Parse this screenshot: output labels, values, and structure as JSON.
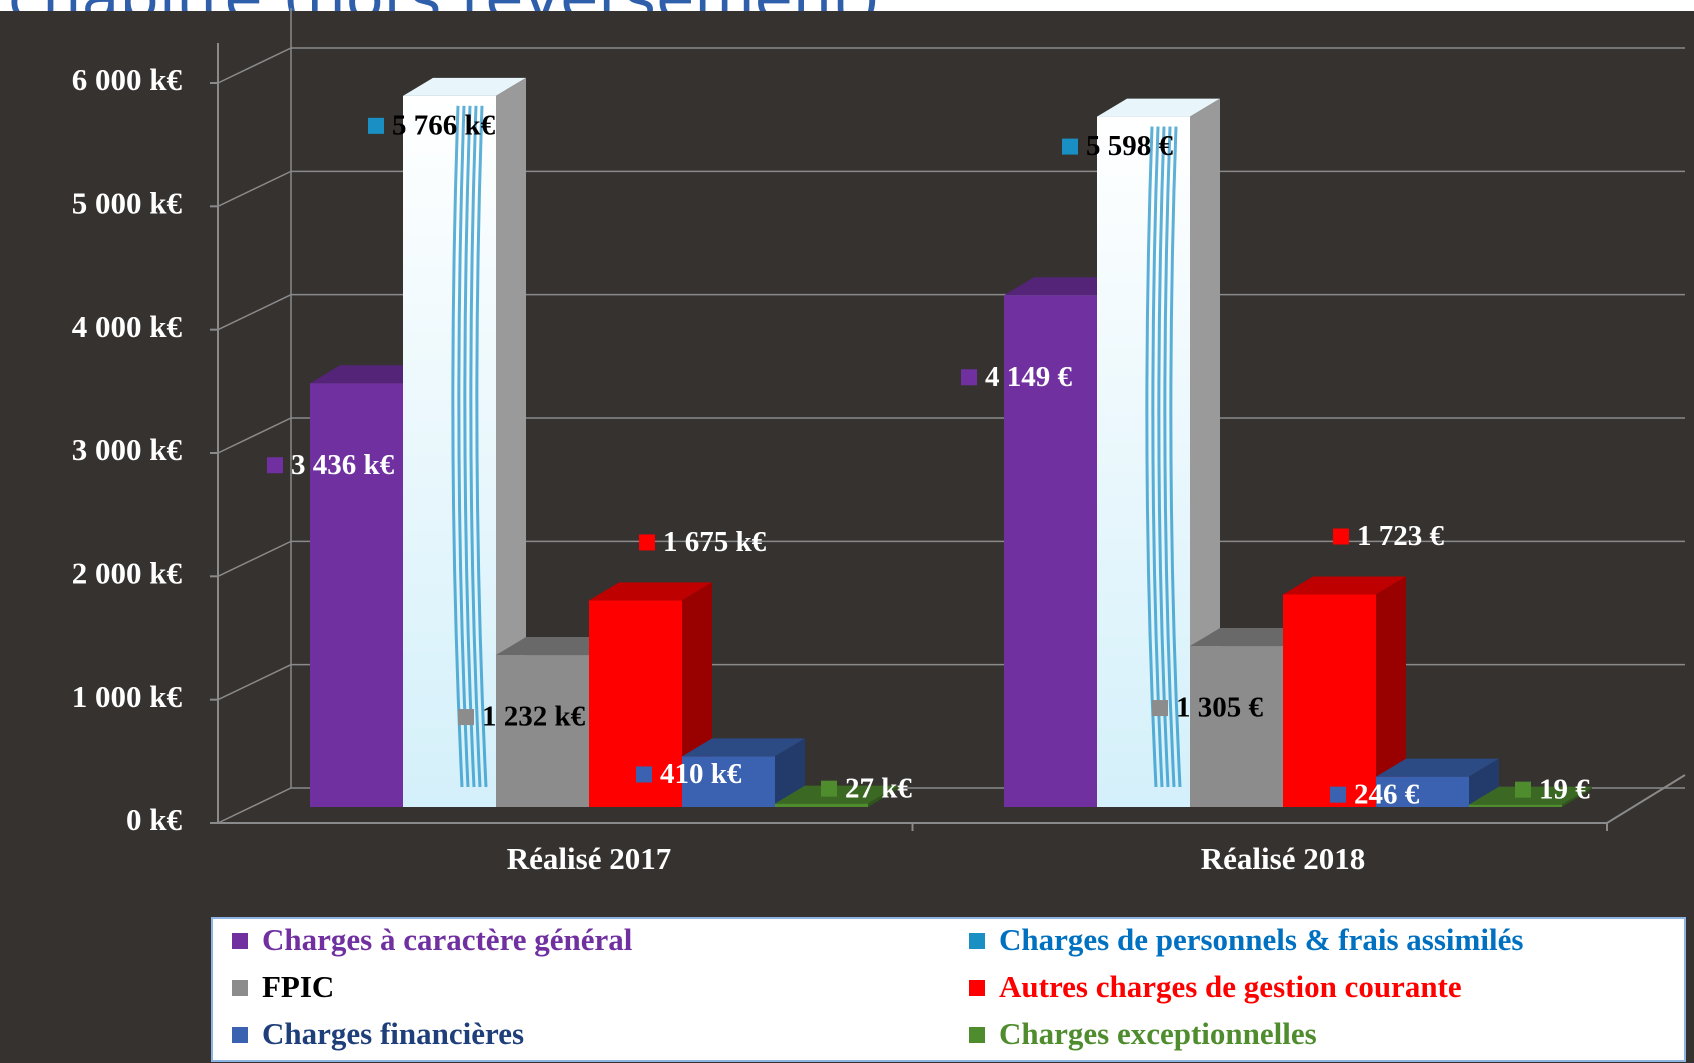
{
  "chart_data": {
    "type": "bar3d",
    "title": "chapitre (hors reversement)",
    "categories": [
      "Réalisé 2017",
      "Réalisé 2018"
    ],
    "series": [
      {
        "name": "Charges à caractère général",
        "color": "#7030a0",
        "text_color": "#7030a0",
        "values": [
          3436,
          4149
        ],
        "value_labels": [
          "3 436  k€",
          "4 149 €"
        ],
        "label_color": "#ffffff"
      },
      {
        "name": "Charges de personnels & frais assimilés",
        "color": "#1a8fc4",
        "text_color": "#0070c0",
        "values": [
          5766,
          5598
        ],
        "value_labels": [
          "5 766  k€",
          "5 598 €"
        ],
        "label_color": "#000000"
      },
      {
        "name": "FPIC",
        "color": "#8c8c8c",
        "text_color": "#000000",
        "values": [
          1232,
          1305
        ],
        "value_labels": [
          "1 232  k€",
          "1 305 €"
        ],
        "label_color": "#000000"
      },
      {
        "name": "Autres charges de gestion courante",
        "color": "#ff0000",
        "text_color": "#ff0000",
        "values": [
          1675,
          1723
        ],
        "value_labels": [
          "1 675  k€",
          "1 723 €"
        ],
        "label_color": "#ffffff"
      },
      {
        "name": "Charges financières",
        "color": "#3a62b0",
        "text_color": "#1f3f7a",
        "values": [
          410,
          246
        ],
        "value_labels": [
          "410  k€",
          "246 €"
        ],
        "label_color": "#ffffff"
      },
      {
        "name": "Charges exceptionnelles",
        "color": "#4e8c2e",
        "text_color": "#4e8c2e",
        "values": [
          27,
          19
        ],
        "value_labels": [
          "27  k€",
          "19 €"
        ],
        "label_color": "#ffffff"
      }
    ],
    "ylim": [
      0,
      6000
    ],
    "yticks": [
      {
        "value": 0,
        "label": "0  k€"
      },
      {
        "value": 1000,
        "label": "1 000  k€"
      },
      {
        "value": 2000,
        "label": "2 000  k€"
      },
      {
        "value": 3000,
        "label": "3 000  k€"
      },
      {
        "value": 4000,
        "label": "4 000  k€"
      },
      {
        "value": 5000,
        "label": "5 000  k€"
      },
      {
        "value": 6000,
        "label": "6 000  k€"
      }
    ],
    "grid": true,
    "legend": "bottom"
  }
}
